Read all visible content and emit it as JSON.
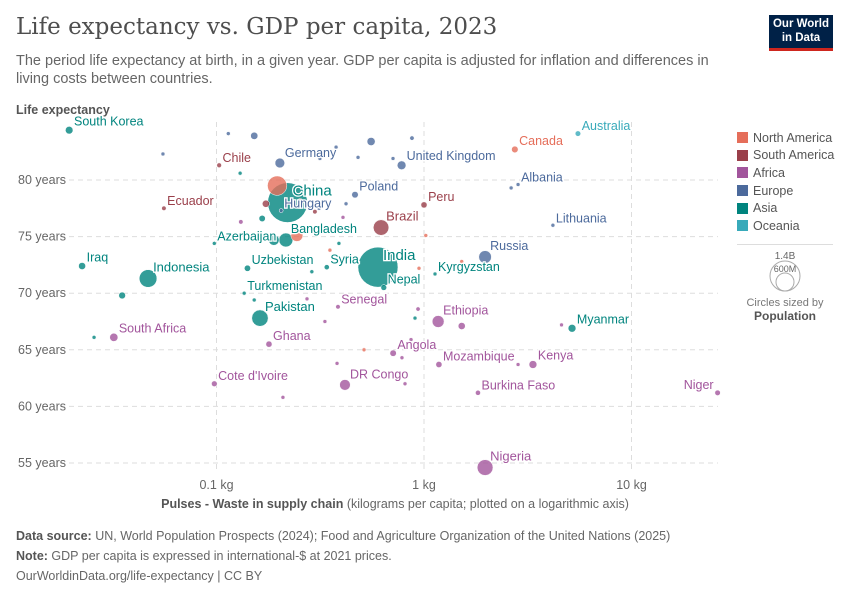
{
  "header": {
    "title": "Life expectancy vs. GDP per capita, 2023",
    "subtitle": "The period life expectancy at birth, in a given year. GDP per capita is adjusted for inflation and differences in living costs between countries.",
    "logo": [
      "Our World",
      "in Data"
    ]
  },
  "footer": {
    "source_label": "Data source:",
    "source_text": " UN, World Population Prospects (2024); Food and Agriculture Organization of the United Nations (2025)",
    "note_label": "Note:",
    "note_text": " GDP per capita is expressed in international-$ at 2021 prices.",
    "link": "OurWorldinData.org/life-expectancy | CC BY"
  },
  "legend": {
    "size_title": "Circles sized by",
    "size_variable": "Population",
    "size_values": [
      "1.4B",
      "600M"
    ]
  },
  "chart_data": {
    "type": "scatter",
    "title": "Life expectancy vs. GDP per capita, 2023",
    "ylabel": "Life expectancy",
    "xlabel_bold": "Pulses - Waste in supply chain",
    "xlabel_rest": " (kilograms per capita; plotted on a logarithmic axis)",
    "xscale": "log",
    "xlim": [
      0.018,
      26
    ],
    "ylim": [
      53.5,
      85
    ],
    "xticks": [
      {
        "v": 0.1,
        "label": "0.1 kg"
      },
      {
        "v": 1,
        "label": "1 kg"
      },
      {
        "v": 10,
        "label": "10 kg"
      }
    ],
    "yticks": [
      {
        "v": 55,
        "label": "55 years"
      },
      {
        "v": 60,
        "label": "60 years"
      },
      {
        "v": 65,
        "label": "65 years"
      },
      {
        "v": 70,
        "label": "70 years"
      },
      {
        "v": 75,
        "label": "75 years"
      },
      {
        "v": 80,
        "label": "80 years"
      }
    ],
    "grid": true,
    "legend_position": "right",
    "regions": [
      {
        "name": "North America",
        "color": "#e56e5a"
      },
      {
        "name": "South America",
        "color": "#9a3f4a"
      },
      {
        "name": "Africa",
        "color": "#a2559c"
      },
      {
        "name": "Europe",
        "color": "#4c6a9c"
      },
      {
        "name": "Asia",
        "color": "#00847e"
      },
      {
        "name": "Oceania",
        "color": "#38aaba"
      }
    ],
    "points": [
      {
        "label": "South Korea",
        "region": "Asia",
        "x": 0.0195,
        "y": 84.4,
        "pop": 52
      },
      {
        "label": "Chile",
        "region": "South America",
        "x": 0.103,
        "y": 81.3,
        "pop": 20
      },
      {
        "label": "Germany",
        "region": "Europe",
        "x": 0.202,
        "y": 81.5,
        "pop": 84
      },
      {
        "label": "China",
        "region": "Asia",
        "x": 0.22,
        "y": 78.0,
        "pop": 1410
      },
      {
        "label": "Hungary",
        "region": "Europe",
        "x": 0.205,
        "y": 77.3,
        "pop": 10
      },
      {
        "label": "Ecuador",
        "region": "South America",
        "x": 0.0558,
        "y": 77.5,
        "pop": 18
      },
      {
        "label": "Poland",
        "region": "Europe",
        "x": 0.465,
        "y": 78.7,
        "pop": 38
      },
      {
        "label": "Brazil",
        "region": "South America",
        "x": 0.621,
        "y": 75.8,
        "pop": 216
      },
      {
        "label": "Bangladesh",
        "region": "Asia",
        "x": 0.216,
        "y": 74.7,
        "pop": 173
      },
      {
        "label": "Azerbaijan",
        "region": "Asia",
        "x": 0.0976,
        "y": 74.4,
        "pop": 10
      },
      {
        "label": "Iraq",
        "region": "Asia",
        "x": 0.0225,
        "y": 72.4,
        "pop": 45
      },
      {
        "label": "Indonesia",
        "region": "Asia",
        "x": 0.0468,
        "y": 71.3,
        "pop": 278
      },
      {
        "label": "Uzbekistan",
        "region": "Asia",
        "x": 0.141,
        "y": 72.2,
        "pop": 35
      },
      {
        "label": "Syria",
        "region": "Asia",
        "x": 0.34,
        "y": 72.3,
        "pop": 23
      },
      {
        "label": "India",
        "region": "Asia",
        "x": 0.6,
        "y": 72.3,
        "pop": 1430
      },
      {
        "label": "Nepal",
        "region": "Asia",
        "x": 0.64,
        "y": 70.5,
        "pop": 30
      },
      {
        "label": "Turkmenistan",
        "region": "Asia",
        "x": 0.136,
        "y": 70.0,
        "pop": 7
      },
      {
        "label": "Pakistan",
        "region": "Asia",
        "x": 0.162,
        "y": 67.8,
        "pop": 240
      },
      {
        "label": "Senegal",
        "region": "Africa",
        "x": 0.385,
        "y": 68.8,
        "pop": 18
      },
      {
        "label": "South Africa",
        "region": "Africa",
        "x": 0.032,
        "y": 66.1,
        "pop": 60
      },
      {
        "label": "Ghana",
        "region": "Africa",
        "x": 0.179,
        "y": 65.5,
        "pop": 34
      },
      {
        "label": "Cote d'Ivoire",
        "region": "Africa",
        "x": 0.0976,
        "y": 62.0,
        "pop": 29
      },
      {
        "label": "DR Congo",
        "region": "Africa",
        "x": 0.416,
        "y": 61.9,
        "pop": 102
      },
      {
        "label": "Angola",
        "region": "Africa",
        "x": 0.71,
        "y": 64.7,
        "pop": 37
      },
      {
        "label": "Ethiopia",
        "region": "Africa",
        "x": 1.17,
        "y": 67.5,
        "pop": 127
      },
      {
        "label": "Mozambique",
        "region": "Africa",
        "x": 1.18,
        "y": 63.7,
        "pop": 34
      },
      {
        "label": "Kenya",
        "region": "Africa",
        "x": 3.35,
        "y": 63.7,
        "pop": 55
      },
      {
        "label": "Burkina Faso",
        "region": "Africa",
        "x": 1.82,
        "y": 61.2,
        "pop": 23
      },
      {
        "label": "Niger",
        "region": "Africa",
        "x": 26,
        "y": 61.2,
        "pop": 27
      },
      {
        "label": "Nigeria",
        "region": "Africa",
        "x": 1.97,
        "y": 54.6,
        "pop": 224
      },
      {
        "label": "Myanmar",
        "region": "Asia",
        "x": 5.17,
        "y": 66.9,
        "pop": 54
      },
      {
        "label": "Peru",
        "region": "South America",
        "x": 1.0,
        "y": 77.8,
        "pop": 34
      },
      {
        "label": "United Kingdom",
        "region": "Europe",
        "x": 0.78,
        "y": 81.3,
        "pop": 68
      },
      {
        "label": "Canada",
        "region": "North America",
        "x": 2.74,
        "y": 82.7,
        "pop": 39
      },
      {
        "label": "Australia",
        "region": "Oceania",
        "x": 5.52,
        "y": 84.1,
        "pop": 27
      },
      {
        "label": "Albania",
        "region": "Europe",
        "x": 2.84,
        "y": 79.6,
        "pop": 3
      },
      {
        "label": "Lithuania",
        "region": "Europe",
        "x": 4.18,
        "y": 76.0,
        "pop": 3
      },
      {
        "label": "Russia",
        "region": "Europe",
        "x": 1.97,
        "y": 73.2,
        "pop": 144
      },
      {
        "label": "Kyrgyzstan",
        "region": "Asia",
        "x": 1.13,
        "y": 71.7,
        "pop": 7
      },
      {
        "label": "",
        "region": "North America",
        "x": 0.196,
        "y": 79.5,
        "pop": 335
      },
      {
        "label": "",
        "region": "North America",
        "x": 0.244,
        "y": 75.1,
        "pop": 128
      },
      {
        "label": "",
        "region": "North America",
        "x": 0.352,
        "y": 73.8,
        "pop": 5
      },
      {
        "label": "",
        "region": "North America",
        "x": 0.514,
        "y": 65.0,
        "pop": 5
      },
      {
        "label": "",
        "region": "North America",
        "x": 1.02,
        "y": 75.1,
        "pop": 5
      },
      {
        "label": "",
        "region": "North America",
        "x": 0.946,
        "y": 72.2,
        "pop": 5
      },
      {
        "label": "",
        "region": "North America",
        "x": 1.52,
        "y": 72.8,
        "pop": 5
      },
      {
        "label": "",
        "region": "South America",
        "x": 0.173,
        "y": 77.9,
        "pop": 46
      },
      {
        "label": "",
        "region": "South America",
        "x": 0.298,
        "y": 77.2,
        "pop": 18
      },
      {
        "label": "",
        "region": "South America",
        "x": 0.253,
        "y": 78.2,
        "pop": 3
      },
      {
        "label": "",
        "region": "Europe",
        "x": 0.114,
        "y": 84.1,
        "pop": 5
      },
      {
        "label": "",
        "region": "Europe",
        "x": 0.152,
        "y": 83.9,
        "pop": 47
      },
      {
        "label": "",
        "region": "Europe",
        "x": 0.0552,
        "y": 82.3,
        "pop": 5
      },
      {
        "label": "",
        "region": "Europe",
        "x": 0.377,
        "y": 82.9,
        "pop": 5
      },
      {
        "label": "",
        "region": "Europe",
        "x": 0.556,
        "y": 83.4,
        "pop": 59
      },
      {
        "label": "",
        "region": "Europe",
        "x": 0.875,
        "y": 83.7,
        "pop": 17
      },
      {
        "label": "",
        "region": "Europe",
        "x": 0.481,
        "y": 82.0,
        "pop": 5
      },
      {
        "label": "",
        "region": "Europe",
        "x": 0.709,
        "y": 81.9,
        "pop": 5
      },
      {
        "label": "",
        "region": "Europe",
        "x": 0.315,
        "y": 81.9,
        "pop": 5
      },
      {
        "label": "",
        "region": "Europe",
        "x": 0.421,
        "y": 77.9,
        "pop": 5
      },
      {
        "label": "",
        "region": "Europe",
        "x": 0.312,
        "y": 77.5,
        "pop": 5
      },
      {
        "label": "",
        "region": "Europe",
        "x": 2.63,
        "y": 79.3,
        "pop": 3
      },
      {
        "label": "",
        "region": "Asia",
        "x": 0.13,
        "y": 80.6,
        "pop": 5
      },
      {
        "label": "",
        "region": "Asia",
        "x": 0.166,
        "y": 76.6,
        "pop": 36
      },
      {
        "label": "",
        "region": "Asia",
        "x": 0.189,
        "y": 74.7,
        "pop": 100
      },
      {
        "label": "",
        "region": "Asia",
        "x": 0.389,
        "y": 74.4,
        "pop": 5
      },
      {
        "label": "",
        "region": "Asia",
        "x": 0.0257,
        "y": 66.1,
        "pop": 10
      },
      {
        "label": "",
        "region": "Asia",
        "x": 0.0351,
        "y": 69.8,
        "pop": 41
      },
      {
        "label": "",
        "region": "Asia",
        "x": 0.152,
        "y": 69.4,
        "pop": 5
      },
      {
        "label": "",
        "region": "Asia",
        "x": 0.288,
        "y": 71.9,
        "pop": 5
      },
      {
        "label": "",
        "region": "Asia",
        "x": 0.905,
        "y": 67.8,
        "pop": 5
      },
      {
        "label": "",
        "region": "Africa",
        "x": 0.131,
        "y": 76.3,
        "pop": 18
      },
      {
        "label": "",
        "region": "Africa",
        "x": 0.407,
        "y": 76.7,
        "pop": 5
      },
      {
        "label": "",
        "region": "Africa",
        "x": 0.333,
        "y": 67.5,
        "pop": 5
      },
      {
        "label": "",
        "region": "Africa",
        "x": 0.273,
        "y": 69.5,
        "pop": 5
      },
      {
        "label": "",
        "region": "Africa",
        "x": 0.381,
        "y": 63.8,
        "pop": 10
      },
      {
        "label": "",
        "region": "Africa",
        "x": 0.209,
        "y": 60.8,
        "pop": 5
      },
      {
        "label": "",
        "region": "Africa",
        "x": 0.783,
        "y": 64.3,
        "pop": 5
      },
      {
        "label": "",
        "region": "Africa",
        "x": 0.936,
        "y": 68.6,
        "pop": 16
      },
      {
        "label": "",
        "region": "Africa",
        "x": 0.866,
        "y": 65.9,
        "pop": 5
      },
      {
        "label": "",
        "region": "Africa",
        "x": 0.81,
        "y": 62.0,
        "pop": 5
      },
      {
        "label": "",
        "region": "Africa",
        "x": 1.52,
        "y": 67.1,
        "pop": 45
      },
      {
        "label": "",
        "region": "Africa",
        "x": 2.84,
        "y": 63.7,
        "pop": 5
      },
      {
        "label": "",
        "region": "Africa",
        "x": 4.6,
        "y": 67.2,
        "pop": 5
      }
    ]
  }
}
